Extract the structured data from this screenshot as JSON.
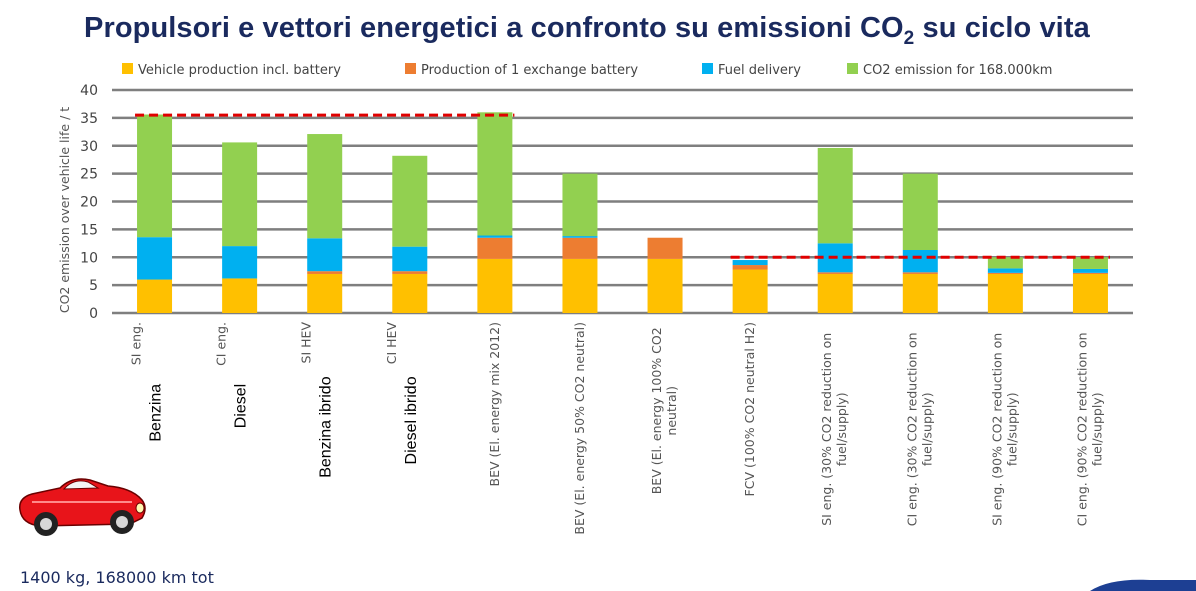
{
  "title": {
    "main": "Propulsori e vettori energetici a confronto su emissioni CO",
    "subscript": "2",
    "tail": " su ciclo vita"
  },
  "footer_note": "1400 kg, 168000 km tot",
  "chart_data": {
    "type": "bar",
    "stacked": true,
    "ylabel": "CO2 emission over vehicle life / t",
    "xlabel": "",
    "ylim": [
      0,
      40
    ],
    "yticks": [
      0,
      5,
      10,
      15,
      20,
      25,
      30,
      35,
      40
    ],
    "grid": true,
    "legend_position": "top",
    "categories": [
      {
        "big": "Benzina",
        "small": "SI eng."
      },
      {
        "big": "Diesel",
        "small": "CI eng."
      },
      {
        "big": "Benzina ibrido",
        "small": "SI HEV"
      },
      {
        "big": "Diesel ibrido",
        "small": "CI HEV"
      },
      {
        "lines": [
          "BEV (El. energy mix 2012)"
        ]
      },
      {
        "lines": [
          "BEV (El. energy 50% CO2 neutral)"
        ]
      },
      {
        "lines": [
          "BEV (El. energy 100% CO2",
          "neutral)"
        ]
      },
      {
        "lines": [
          "FCV (100% CO2 neutral H2)"
        ]
      },
      {
        "lines": [
          "SI eng. (30% CO2 reduction on",
          "fuel/supply)"
        ]
      },
      {
        "lines": [
          "CI eng. (30% CO2 reduction on",
          "fuel/supply)"
        ]
      },
      {
        "lines": [
          "SI eng. (90% CO2 reduction on",
          "fuel/supply)"
        ]
      },
      {
        "lines": [
          "CI eng. (90% CO2 reduction on",
          "fuel/supply)"
        ]
      }
    ],
    "series": [
      {
        "name": "Vehicle production incl. battery",
        "color": "#ffc000",
        "values": [
          6.0,
          6.2,
          7.0,
          7.0,
          9.7,
          9.7,
          9.7,
          7.8,
          7.0,
          7.0,
          7.0,
          7.0
        ]
      },
      {
        "name": "Production of 1 exchange battery",
        "color": "#ed7d31",
        "values": [
          0,
          0,
          0.5,
          0.5,
          3.8,
          3.8,
          3.8,
          0.8,
          0.3,
          0.3,
          0.2,
          0.2
        ]
      },
      {
        "name": "Fuel delivery",
        "color": "#00b0f0",
        "values": [
          7.6,
          5.8,
          5.9,
          4.4,
          0.4,
          0.3,
          0,
          0.9,
          5.2,
          4.0,
          0.8,
          0.7
        ]
      },
      {
        "name": "CO2 emission for 168.000km",
        "color": "#92d050",
        "values": [
          22.0,
          18.6,
          18.7,
          16.3,
          22.1,
          11.2,
          0,
          0,
          17.1,
          13.7,
          2.0,
          2.1
        ]
      }
    ],
    "reference_lines": [
      {
        "value": 35.5,
        "from_category": 0,
        "to_category": 4,
        "color": "#e00000",
        "style": "dashed"
      },
      {
        "value": 10.0,
        "from_category": 7,
        "to_category": 11,
        "color": "#e00000",
        "style": "dashed"
      }
    ]
  }
}
